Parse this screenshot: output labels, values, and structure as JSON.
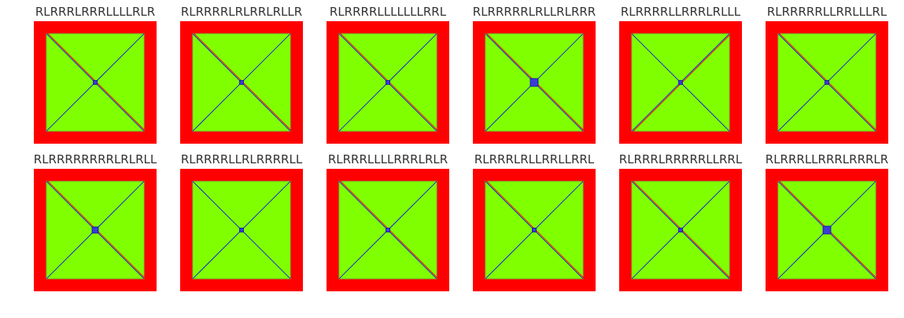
{
  "colors": {
    "border": "#ff0000",
    "fill": "#80ff00",
    "line_blue": "#0000ff",
    "line_red": "#ff0000",
    "text": "#333333"
  },
  "panels": [
    {
      "label": "RLRRRLRRRLLLLRLR",
      "red_diagonal": "tl-br",
      "center_mark": "small"
    },
    {
      "label": "RLRRRRLRLRRLRLLR",
      "red_diagonal": "tl-br",
      "center_mark": "small"
    },
    {
      "label": "RLRRRRLLLLLLLRRL",
      "red_diagonal": "tl-br",
      "center_mark": "small"
    },
    {
      "label": "RLRRRRRLRLLRLRRR",
      "red_diagonal": "tl-br",
      "center_mark": "large"
    },
    {
      "label": "RLRRRRLLRRRLRLLL",
      "red_diagonal": "bl-tr",
      "center_mark": "small"
    },
    {
      "label": "RLRRRRRLLRRLLLRL",
      "red_diagonal": "tl-br",
      "center_mark": "small"
    },
    {
      "label": "RLRRRRRRRRLRLRLL",
      "red_diagonal": "tl-br",
      "center_mark": "medium"
    },
    {
      "label": "RLRRRRLLRLRRRRLL",
      "red_diagonal": "none",
      "center_mark": "small"
    },
    {
      "label": "RLRRRLLLLRRRLRLR",
      "red_diagonal": "tl-br",
      "center_mark": "small"
    },
    {
      "label": "RLRRRLRLLRRLLRRL",
      "red_diagonal": "tl-br",
      "center_mark": "small"
    },
    {
      "label": "RLRRRLRRRRRLLRRL",
      "red_diagonal": "tl-br",
      "center_mark": "small"
    },
    {
      "label": "RLRRRLLRRRLRRRLR",
      "red_diagonal": "tl-br",
      "center_mark": "large"
    }
  ]
}
